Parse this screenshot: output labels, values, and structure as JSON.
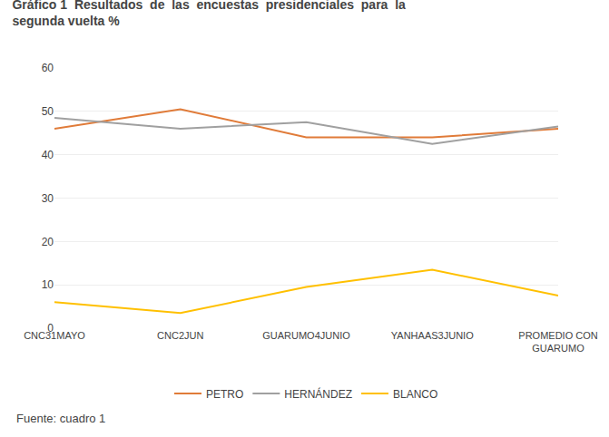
{
  "chart_data": {
    "type": "line",
    "title": "Gráfico 1  Resultados  de  las  encuestas  presidenciales  para  la\nsegunda vuelta %",
    "annotations": [
      "Fuente: cuadro 1"
    ],
    "categories": [
      "CNC31MAYO",
      "CNC2JUN",
      "GUARUMO4JUNIO",
      "YANHAAS3JUNIO",
      "PROMEDIO CON\nGUARUMO"
    ],
    "series": [
      {
        "name": "PETRO",
        "color": "#e07b39",
        "values": [
          46.0,
          50.5,
          44.0,
          44.0,
          46.0
        ]
      },
      {
        "name": "HERNÁNDEZ",
        "color": "#a0a0a0",
        "values": [
          48.5,
          46.0,
          47.5,
          42.5,
          46.5
        ]
      },
      {
        "name": "BLANCO",
        "color": "#ffc000",
        "values": [
          6.0,
          3.5,
          9.5,
          13.5,
          7.5
        ]
      }
    ],
    "ylim": [
      0,
      60
    ],
    "yticks": [
      0,
      10,
      20,
      30,
      40,
      50,
      60
    ],
    "grid": true,
    "legend": "bottom"
  }
}
